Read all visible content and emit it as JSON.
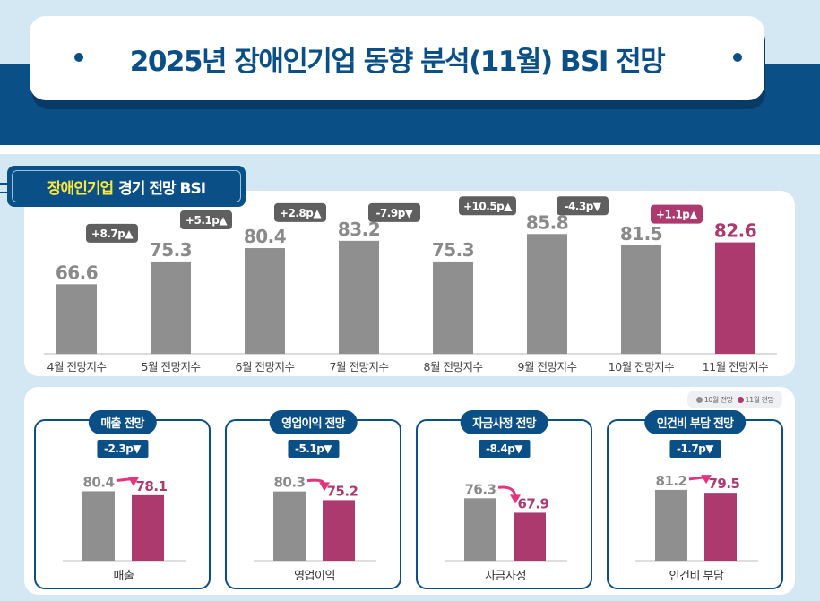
{
  "header": {
    "title": "2025년 장애인기업 동향 분석(11월) BSI 전망"
  },
  "section": {
    "highlight": "장애인기업",
    "rest": "경기 전망 BSI"
  },
  "colors": {
    "navy": "#0b4f87",
    "gray_bar": "#8f8f8f",
    "magenta": "#ad3a6f",
    "delta_gray": "#5f5f5f",
    "highlight_yellow": "#ffe83a",
    "arrow_pink": "#e2357e"
  },
  "legend": {
    "prev": "10월 전망",
    "curr": "11월 전망"
  },
  "chart_data": [
    {
      "type": "bar",
      "title": "장애인기업 경기 전망 BSI",
      "categories": [
        "4월 전망지수",
        "5월 전망지수",
        "6월 전망지수",
        "7월 전망지수",
        "8월 전망지수",
        "9월 전망지수",
        "10월 전망지수",
        "11월 전망지수"
      ],
      "values": [
        66.6,
        75.3,
        80.4,
        83.2,
        75.3,
        85.8,
        81.5,
        82.6
      ],
      "value_labels": [
        "66.6",
        "75.3",
        "80.4",
        "83.2",
        "75.3",
        "85.8",
        "81.5",
        "82.6"
      ],
      "changes": [
        null,
        "+8.7p▲",
        "+5.1p▲",
        "+2.8p▲",
        "-7.9p▼",
        "+10.5p▲",
        "-4.3p▼",
        "+1.1p▲"
      ],
      "highlight_index": 7,
      "xlabel": "",
      "ylabel": "",
      "ylim": [
        40,
        90
      ],
      "grid": false
    },
    {
      "type": "bar",
      "title": "매출 전망",
      "delta": "-2.3p▼",
      "categories": [
        "매출"
      ],
      "series": [
        {
          "name": "10월 전망",
          "values": [
            80.4
          ]
        },
        {
          "name": "11월 전망",
          "values": [
            78.1
          ]
        }
      ],
      "ylim": [
        40,
        90
      ]
    },
    {
      "type": "bar",
      "title": "영업이익 전망",
      "delta": "-5.1p▼",
      "categories": [
        "영업이익"
      ],
      "series": [
        {
          "name": "10월 전망",
          "values": [
            80.3
          ]
        },
        {
          "name": "11월 전망",
          "values": [
            75.2
          ]
        }
      ],
      "ylim": [
        40,
        90
      ]
    },
    {
      "type": "bar",
      "title": "자금사정 전망",
      "delta": "-8.4p▼",
      "categories": [
        "자금사정"
      ],
      "series": [
        {
          "name": "10월 전망",
          "values": [
            76.3
          ]
        },
        {
          "name": "11월 전망",
          "values": [
            67.9
          ]
        }
      ],
      "ylim": [
        40,
        90
      ]
    },
    {
      "type": "bar",
      "title": "인건비 부담 전망",
      "delta": "-1.7p▼",
      "categories": [
        "인건비 부담"
      ],
      "series": [
        {
          "name": "10월 전망",
          "values": [
            81.2
          ]
        },
        {
          "name": "11월 전망",
          "values": [
            79.5
          ]
        }
      ],
      "ylim": [
        40,
        90
      ]
    }
  ]
}
